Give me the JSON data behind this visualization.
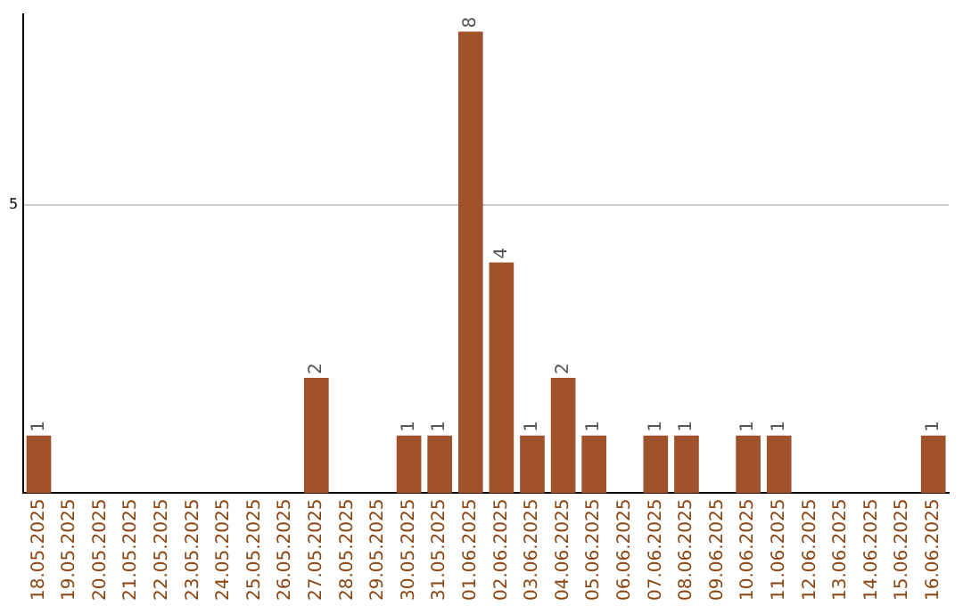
{
  "chart_data": {
    "type": "bar",
    "categories": [
      "18.05.2025",
      "19.05.2025",
      "20.05.2025",
      "21.05.2025",
      "22.05.2025",
      "23.05.2025",
      "24.05.2025",
      "25.05.2025",
      "26.05.2025",
      "27.05.2025",
      "28.05.2025",
      "29.05.2025",
      "30.05.2025",
      "31.05.2025",
      "01.06.2025",
      "02.06.2025",
      "03.06.2025",
      "04.06.2025",
      "05.06.2025",
      "06.06.2025",
      "07.06.2025",
      "08.06.2025",
      "09.06.2025",
      "10.06.2025",
      "11.06.2025",
      "12.06.2025",
      "13.06.2025",
      "14.06.2025",
      "15.06.2025",
      "16.06.2025"
    ],
    "values": [
      1,
      0,
      0,
      0,
      0,
      0,
      0,
      0,
      0,
      2,
      0,
      0,
      1,
      1,
      8,
      4,
      1,
      2,
      1,
      0,
      1,
      1,
      0,
      1,
      1,
      0,
      0,
      0,
      0,
      1
    ],
    "value_labels": [
      "1",
      null,
      null,
      null,
      null,
      null,
      null,
      null,
      null,
      "2",
      null,
      null,
      "1",
      "1",
      "8",
      "4",
      "1",
      "2",
      "1",
      null,
      "1",
      "1",
      null,
      "1",
      "1",
      null,
      null,
      null,
      null,
      "1"
    ],
    "color": "#a0522d",
    "ylim": [
      0,
      8.3
    ],
    "yticks": [
      5
    ],
    "grid": "y"
  }
}
